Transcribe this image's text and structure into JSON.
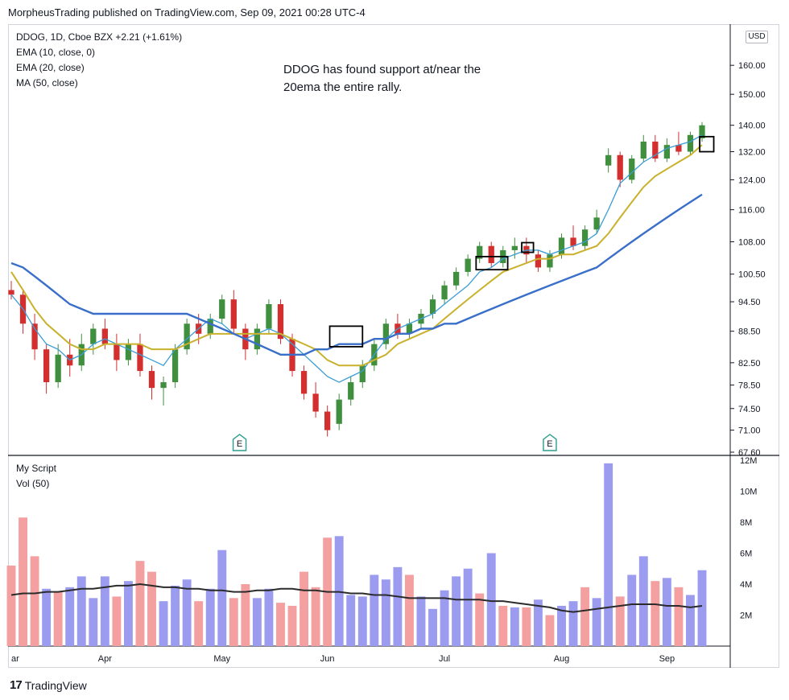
{
  "header": {
    "text": "MorpheusTrading published on TradingView.com, Sep 09, 2021 00:28 UTC-4"
  },
  "legend": {
    "symbol_line": "DDOG, 1D, Cboe BZX  +2.21 (+1.61%)",
    "ema10": "EMA (10, close, 0)",
    "ema20": "EMA (20, close)",
    "ma50": "MA (50, close)",
    "script": "My Script",
    "vol": "Vol (50)"
  },
  "annotation": {
    "line1": "DDOG has found support at/near the",
    "line2": "20ema the entire rally."
  },
  "currency": "USD",
  "earnings_marker": "E",
  "brand": {
    "logo": "17",
    "name": "TradingView"
  },
  "colors": {
    "up": "#3f8f3f",
    "down": "#d32f2f",
    "ema10": "#3b9dd4",
    "ema20": "#c9b12c",
    "ma50": "#3a6fc9",
    "vol_up": "#9b9bf0",
    "vol_down": "#f4a0a0",
    "vol_ma": "#2b2b2b"
  },
  "chart_data": [
    {
      "type": "candlestick",
      "title": "DDOG, 1D, Cboe BZX",
      "x_axis_labels": [
        "ar",
        "Apr",
        "May",
        "Jun",
        "Jul",
        "Aug",
        "Sep"
      ],
      "y_ticks": [
        "160.00",
        "150.00",
        "140.00",
        "132.00",
        "124.00",
        "116.00",
        "108.00",
        "100.50",
        "94.50",
        "88.50",
        "82.50",
        "78.50",
        "74.50",
        "71.00",
        "67.60"
      ],
      "scale": "log",
      "ylim": [
        67.6,
        165
      ],
      "series": [
        {
          "name": "EMA (10, close, 0)",
          "values": [
            96,
            93,
            89,
            86,
            85,
            83,
            84,
            86,
            87,
            86,
            85,
            84,
            83,
            82,
            85,
            87,
            89,
            91,
            90,
            88,
            87,
            88,
            89,
            88,
            86,
            84,
            82,
            80,
            79,
            80,
            81,
            84,
            87,
            89,
            90,
            91,
            92,
            94,
            96,
            98,
            101,
            102,
            104,
            105,
            106,
            106,
            105,
            106,
            107,
            108,
            110,
            116,
            123,
            126,
            129,
            131,
            133,
            134,
            135,
            137
          ]
        },
        {
          "name": "EMA (20, close)",
          "values": [
            101,
            97,
            93,
            90,
            88,
            86,
            85,
            85,
            86,
            86,
            86,
            86,
            85,
            85,
            85,
            86,
            87,
            88,
            88,
            88,
            88,
            88,
            88,
            88,
            87,
            86,
            85,
            83,
            82,
            82,
            82,
            83,
            84,
            86,
            87,
            88,
            89,
            91,
            93,
            95,
            97,
            99,
            101,
            102,
            103,
            104,
            104,
            105,
            105,
            106,
            107,
            110,
            114,
            118,
            122,
            125,
            127,
            129,
            131,
            134
          ]
        },
        {
          "name": "MA (50, close)",
          "values": [
            103,
            102,
            100,
            98,
            96,
            94,
            93,
            92,
            92,
            92,
            92,
            92,
            92,
            92,
            92,
            92,
            91,
            90,
            89,
            88,
            87,
            86,
            85,
            84,
            84,
            84,
            85,
            85,
            86,
            86,
            86,
            87,
            87,
            88,
            88,
            89,
            89,
            90,
            90,
            91,
            92,
            93,
            94,
            95,
            96,
            97,
            98,
            99,
            100,
            101,
            102,
            104,
            106,
            108,
            110,
            112,
            114,
            116,
            118,
            120
          ]
        }
      ],
      "candles": [
        {
          "o": 97,
          "h": 99,
          "l": 95,
          "c": 96
        },
        {
          "o": 96,
          "h": 97,
          "l": 88,
          "c": 90
        },
        {
          "o": 90,
          "h": 92,
          "l": 83,
          "c": 85
        },
        {
          "o": 85,
          "h": 86,
          "l": 77,
          "c": 79
        },
        {
          "o": 79,
          "h": 86,
          "l": 78,
          "c": 84
        },
        {
          "o": 84,
          "h": 87,
          "l": 80,
          "c": 82
        },
        {
          "o": 82,
          "h": 88,
          "l": 81,
          "c": 86
        },
        {
          "o": 86,
          "h": 90,
          "l": 84,
          "c": 89
        },
        {
          "o": 89,
          "h": 91,
          "l": 85,
          "c": 86
        },
        {
          "o": 86,
          "h": 88,
          "l": 81,
          "c": 83
        },
        {
          "o": 83,
          "h": 87,
          "l": 82,
          "c": 86
        },
        {
          "o": 86,
          "h": 88,
          "l": 80,
          "c": 81
        },
        {
          "o": 81,
          "h": 82,
          "l": 76,
          "c": 78
        },
        {
          "o": 78,
          "h": 80,
          "l": 75,
          "c": 79
        },
        {
          "o": 79,
          "h": 86,
          "l": 78,
          "c": 85
        },
        {
          "o": 85,
          "h": 91,
          "l": 84,
          "c": 90
        },
        {
          "o": 90,
          "h": 92,
          "l": 86,
          "c": 88
        },
        {
          "o": 88,
          "h": 92,
          "l": 87,
          "c": 91
        },
        {
          "o": 91,
          "h": 96,
          "l": 90,
          "c": 95
        },
        {
          "o": 95,
          "h": 97,
          "l": 88,
          "c": 89
        },
        {
          "o": 89,
          "h": 90,
          "l": 83,
          "c": 85
        },
        {
          "o": 85,
          "h": 90,
          "l": 84,
          "c": 89
        },
        {
          "o": 89,
          "h": 95,
          "l": 88,
          "c": 94
        },
        {
          "o": 94,
          "h": 95,
          "l": 86,
          "c": 87
        },
        {
          "o": 87,
          "h": 88,
          "l": 80,
          "c": 81
        },
        {
          "o": 81,
          "h": 82,
          "l": 76,
          "c": 77
        },
        {
          "o": 77,
          "h": 79,
          "l": 73,
          "c": 74
        },
        {
          "o": 74,
          "h": 75,
          "l": 70,
          "c": 71
        },
        {
          "o": 72,
          "h": 77,
          "l": 71,
          "c": 76
        },
        {
          "o": 76,
          "h": 80,
          "l": 75,
          "c": 79
        },
        {
          "o": 79,
          "h": 83,
          "l": 78,
          "c": 82
        },
        {
          "o": 82,
          "h": 87,
          "l": 81,
          "c": 86
        },
        {
          "o": 86,
          "h": 91,
          "l": 85,
          "c": 90
        },
        {
          "o": 90,
          "h": 92,
          "l": 87,
          "c": 88
        },
        {
          "o": 88,
          "h": 91,
          "l": 87,
          "c": 90
        },
        {
          "o": 90,
          "h": 93,
          "l": 89,
          "c": 92
        },
        {
          "o": 92,
          "h": 96,
          "l": 91,
          "c": 95
        },
        {
          "o": 95,
          "h": 99,
          "l": 94,
          "c": 98
        },
        {
          "o": 98,
          "h": 102,
          "l": 97,
          "c": 101
        },
        {
          "o": 101,
          "h": 105,
          "l": 100,
          "c": 104
        },
        {
          "o": 104,
          "h": 108,
          "l": 103,
          "c": 107
        },
        {
          "o": 107,
          "h": 108,
          "l": 102,
          "c": 103
        },
        {
          "o": 103,
          "h": 107,
          "l": 102,
          "c": 106
        },
        {
          "o": 106,
          "h": 109,
          "l": 104,
          "c": 107
        },
        {
          "o": 107,
          "h": 109,
          "l": 103,
          "c": 105
        },
        {
          "o": 105,
          "h": 106,
          "l": 101,
          "c": 102
        },
        {
          "o": 102,
          "h": 106,
          "l": 101,
          "c": 105
        },
        {
          "o": 105,
          "h": 110,
          "l": 104,
          "c": 109
        },
        {
          "o": 109,
          "h": 112,
          "l": 106,
          "c": 107
        },
        {
          "o": 107,
          "h": 112,
          "l": 106,
          "c": 111
        },
        {
          "o": 111,
          "h": 116,
          "l": 110,
          "c": 114
        },
        {
          "o": 128,
          "h": 133,
          "l": 126,
          "c": 131
        },
        {
          "o": 131,
          "h": 132,
          "l": 122,
          "c": 124
        },
        {
          "o": 124,
          "h": 131,
          "l": 123,
          "c": 130
        },
        {
          "o": 130,
          "h": 137,
          "l": 129,
          "c": 135
        },
        {
          "o": 135,
          "h": 137,
          "l": 129,
          "c": 130
        },
        {
          "o": 130,
          "h": 136,
          "l": 129,
          "c": 134
        },
        {
          "o": 134,
          "h": 138,
          "l": 131,
          "c": 132
        },
        {
          "o": 132,
          "h": 138,
          "l": 131,
          "c": 137
        },
        {
          "o": 136,
          "h": 141,
          "l": 135,
          "c": 140
        }
      ],
      "earnings_markers": [
        "May",
        "Aug"
      ]
    },
    {
      "type": "bar",
      "title": "Vol (50)",
      "y_ticks": [
        "12M",
        "10M",
        "8M",
        "6M",
        "4M",
        "2M"
      ],
      "ylim": [
        0,
        12
      ],
      "unit": "M",
      "values": [
        5.2,
        8.3,
        5.8,
        3.7,
        3.5,
        3.8,
        4.5,
        3.1,
        4.5,
        3.2,
        4.2,
        5.5,
        4.8,
        2.9,
        3.9,
        4.3,
        2.9,
        3.7,
        6.2,
        3.1,
        4.0,
        3.1,
        3.7,
        2.8,
        2.6,
        4.8,
        3.8,
        7.0,
        7.1,
        3.3,
        3.2,
        4.6,
        4.3,
        5.1,
        4.6,
        3.2,
        2.4,
        3.6,
        4.5,
        5.0,
        3.4,
        6.0,
        2.6,
        2.5,
        2.5,
        3.0,
        2.0,
        2.6,
        2.9,
        3.8,
        3.1,
        11.8,
        3.2,
        4.6,
        5.8,
        4.2,
        4.4,
        3.8,
        3.3,
        4.9
      ],
      "up": [
        false,
        false,
        false,
        true,
        false,
        true,
        true,
        true,
        true,
        false,
        true,
        false,
        false,
        true,
        true,
        true,
        false,
        true,
        true,
        false,
        false,
        true,
        true,
        false,
        false,
        false,
        false,
        false,
        true,
        true,
        true,
        true,
        true,
        true,
        false,
        true,
        true,
        true,
        true,
        true,
        false,
        true,
        false,
        true,
        false,
        true,
        false,
        true,
        true,
        false,
        true,
        true,
        false,
        true,
        true,
        false,
        true,
        false,
        true,
        true
      ],
      "ma": [
        3.3,
        3.4,
        3.4,
        3.5,
        3.5,
        3.6,
        3.7,
        3.7,
        3.8,
        3.9,
        3.9,
        4.0,
        3.9,
        3.8,
        3.8,
        3.7,
        3.7,
        3.6,
        3.6,
        3.5,
        3.5,
        3.6,
        3.6,
        3.7,
        3.7,
        3.6,
        3.6,
        3.5,
        3.5,
        3.4,
        3.4,
        3.3,
        3.3,
        3.2,
        3.1,
        3.1,
        3.1,
        3.1,
        3.0,
        3.0,
        3.0,
        2.9,
        2.9,
        2.8,
        2.7,
        2.6,
        2.5,
        2.3,
        2.2,
        2.3,
        2.4,
        2.5,
        2.6,
        2.7,
        2.7,
        2.7,
        2.6,
        2.6,
        2.5,
        2.6
      ]
    }
  ],
  "boxes": [
    "support-box-1",
    "support-box-2",
    "support-box-3",
    "support-box-4"
  ]
}
